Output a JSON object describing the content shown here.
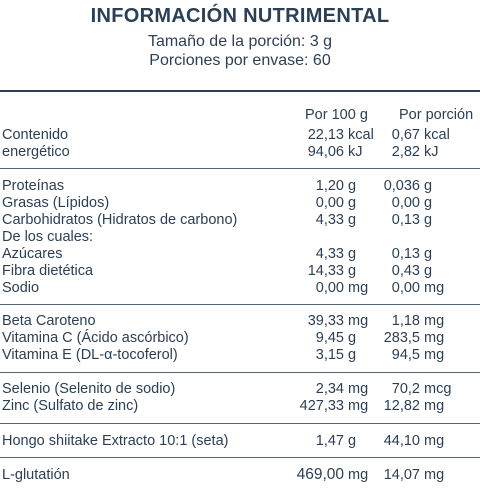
{
  "header": {
    "title": "INFORMACIÓN NUTRIMENTAL",
    "portion_size": "Tamaño de la porción: 3 g",
    "portions_per_pack": "Porciones por envase: 60"
  },
  "columns": {
    "per_100g": "Por 100 g",
    "per_portion": "Por porción"
  },
  "rows": {
    "energy_label_1": "Contenido",
    "energy_label_2": "energético",
    "energy_kcal_100": "22,13",
    "energy_kcal_unit": "kcal",
    "energy_kcal_portion": "0,67",
    "energy_kcal_portion_unit": "kcal",
    "energy_kj_100": "94,06",
    "energy_kj_unit": "kJ",
    "energy_kj_portion": "2,82",
    "energy_kj_portion_unit": "kJ",
    "protein_label": "Proteínas",
    "protein_100": "1,20",
    "protein_unit": "g",
    "protein_portion": "0,036",
    "protein_portion_unit": "g",
    "fat_label": "Grasas (Lípidos)",
    "fat_100": "0,00",
    "fat_unit": "g",
    "fat_portion": "0,00",
    "fat_portion_unit": "g",
    "carb_label": "Carbohidratos (Hidratos de carbono)",
    "carb_100": "4,33",
    "carb_unit": "g",
    "carb_portion": "0,13",
    "carb_portion_unit": "g",
    "of_which_label": "De los cuales:",
    "sugar_label": "Azúcares",
    "sugar_100": "4,33",
    "sugar_unit": "g",
    "sugar_portion": "0,13",
    "sugar_portion_unit": "g",
    "fiber_label": "Fibra dietética",
    "fiber_100": "14,33",
    "fiber_unit": "g",
    "fiber_portion": "0,43",
    "fiber_portion_unit": "g",
    "sodium_label": "Sodio",
    "sodium_100": "0,00",
    "sodium_unit": "mg",
    "sodium_portion": "0,00",
    "sodium_portion_unit": "mg",
    "beta_label": "Beta Caroteno",
    "beta_100": "39,33",
    "beta_unit": "mg",
    "beta_portion": "1,18",
    "beta_portion_unit": "mg",
    "vitc_label": "Vitamina C (Ácido ascórbico)",
    "vitc_100": "9,45",
    "vitc_unit": "g",
    "vitc_portion": "283,5",
    "vitc_portion_unit": "mg",
    "vite_label": "Vitamina E (DL-α-tocoferol)",
    "vite_100": "3,15",
    "vite_unit": "g",
    "vite_portion": "94,5",
    "vite_portion_unit": "mg",
    "selenium_label": "Selenio (Selenito de sodio)",
    "selenium_100": "2,34",
    "selenium_unit": "mg",
    "selenium_portion": "70,2",
    "selenium_portion_unit": "mcg",
    "zinc_label": "Zinc (Sulfato de zinc)",
    "zinc_100": "427,33",
    "zinc_unit": "mg",
    "zinc_portion": "12,82",
    "zinc_portion_unit": "mg",
    "shiitake_label": "Hongo shiitake Extracto 10:1 (seta)",
    "shiitake_100": "1,47",
    "shiitake_unit": "g",
    "shiitake_portion": "44,10",
    "shiitake_portion_unit": "mg",
    "glut_label": "L-glutatión",
    "glut_100": "469,00",
    "glut_unit": "mg",
    "glut_portion": "14,07",
    "glut_portion_unit": "mg"
  }
}
